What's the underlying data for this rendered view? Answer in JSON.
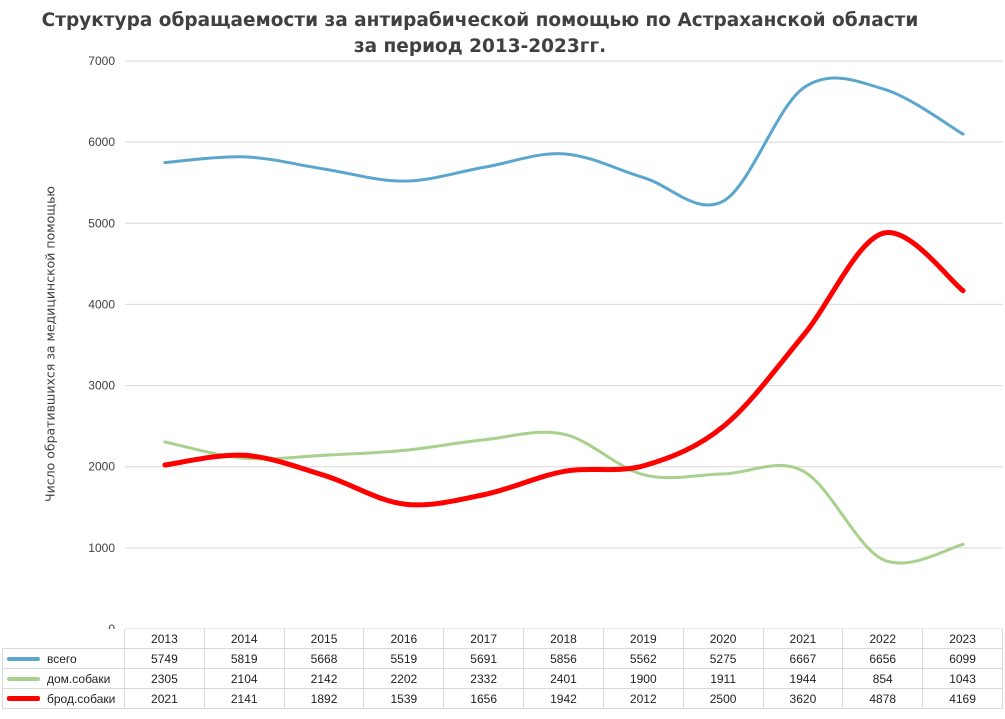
{
  "chart_data": {
    "type": "line",
    "title": "Структура обращаемости за антирабической помощью по Астраханской области за период 2013-2023гг.",
    "ylabel": "Число обратившихся за медицинской помощью",
    "ylim": [
      0,
      7000
    ],
    "yticks": [
      0,
      1000,
      2000,
      3000,
      4000,
      5000,
      6000,
      7000
    ],
    "grid": true,
    "smooth": true,
    "legend": "data-table",
    "categories": [
      "2013",
      "2014",
      "2015",
      "2016",
      "2017",
      "2018",
      "2019",
      "2020",
      "2021",
      "2022",
      "2023"
    ],
    "series": [
      {
        "name": "всего",
        "color": "#5aa6cf",
        "width": 3,
        "values": [
          5749,
          5819,
          5668,
          5519,
          5691,
          5856,
          5562,
          5275,
          6667,
          6656,
          6099
        ]
      },
      {
        "name": "дом.собаки",
        "color": "#a9d18e",
        "width": 3,
        "values": [
          2305,
          2104,
          2142,
          2202,
          2332,
          2401,
          1900,
          1911,
          1944,
          854,
          1043
        ]
      },
      {
        "name": "брод.собаки",
        "color": "#ff0000",
        "width": 5,
        "values": [
          2021,
          2141,
          1892,
          1539,
          1656,
          1942,
          2012,
          2500,
          3620,
          4878,
          4169
        ]
      }
    ]
  }
}
